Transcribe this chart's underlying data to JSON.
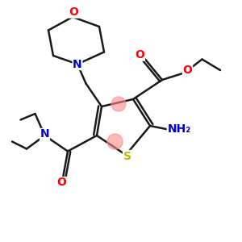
{
  "background_color": "#ffffff",
  "bond_color": "#1a1a1a",
  "atom_colors": {
    "O": "#ff0000",
    "N": "#0000cc",
    "S": "#bbbb00",
    "C": "#1a1a1a"
  },
  "highlight_color": "#ff8888",
  "highlight_alpha": 0.6,
  "lw": 1.8,
  "fs_large": 10,
  "fs_medium": 9,
  "fs_small": 8
}
